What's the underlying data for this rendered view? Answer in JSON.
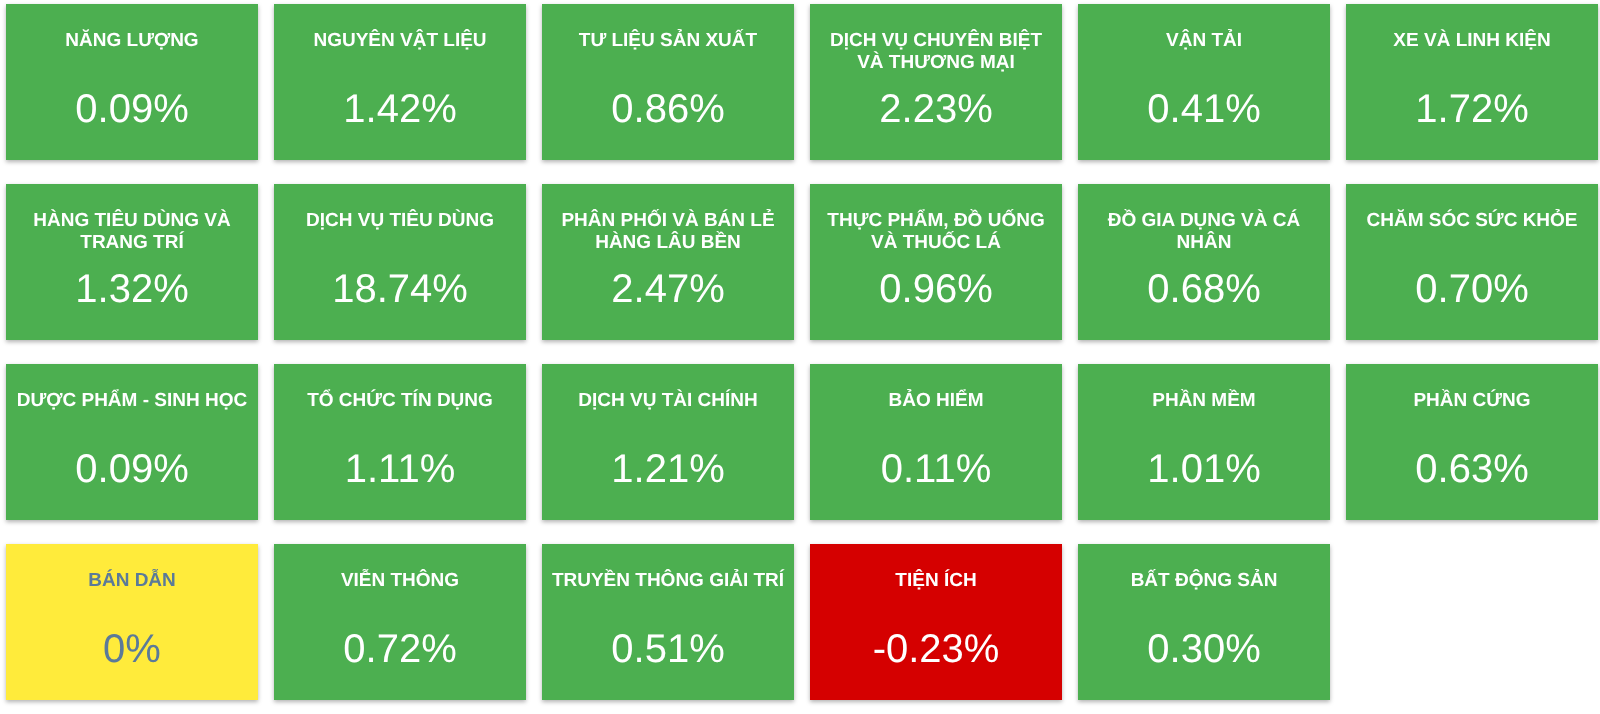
{
  "chart_data": {
    "type": "other",
    "categories": [
      "NĂNG LƯỢNG",
      "NGUYÊN VẬT LIỆU",
      "TƯ LIỆU SẢN XUẤT",
      "DỊCH VỤ CHUYÊN BIỆT VÀ THƯƠNG MẠI",
      "VẬN TẢI",
      "XE VÀ LINH KIỆN",
      "HÀNG TIÊU DÙNG VÀ TRANG TRÍ",
      "DỊCH VỤ TIÊU DÙNG",
      "PHÂN PHỐI VÀ BÁN LẺ HÀNG LÂU BỀN",
      "THỰC PHẨM, ĐỒ UỐNG VÀ THUỐC LÁ",
      "ĐỒ GIA DỤNG VÀ CÁ NHÂN",
      "CHĂM SÓC SỨC KHỎE",
      "DƯỢC PHẨM - SINH HỌC",
      "TỔ CHỨC TÍN DỤNG",
      "DỊCH VỤ TÀI CHÍNH",
      "BẢO HIỂM",
      "PHẦN MỀM",
      "PHẦN CỨNG",
      "BÁN DẪN",
      "VIỄN THÔNG",
      "TRUYỀN THÔNG GIẢI TRÍ",
      "TIỆN ÍCH",
      "BẤT ĐỘNG SẢN"
    ],
    "values": [
      0.09,
      1.42,
      0.86,
      2.23,
      0.41,
      1.72,
      1.32,
      18.74,
      2.47,
      0.96,
      0.68,
      0.7,
      0.09,
      1.11,
      1.21,
      0.11,
      1.01,
      0.63,
      0,
      0.72,
      0.51,
      -0.23,
      0.3
    ],
    "value_labels": [
      "0.09%",
      "1.42%",
      "0.86%",
      "2.23%",
      "0.41%",
      "1.72%",
      "1.32%",
      "18.74%",
      "2.47%",
      "0.96%",
      "0.68%",
      "0.70%",
      "0.09%",
      "1.11%",
      "1.21%",
      "0.11%",
      "1.01%",
      "0.63%",
      "0%",
      "0.72%",
      "0.51%",
      "-0.23%",
      "0.30%"
    ],
    "colors": [
      "#4caf50",
      "#4caf50",
      "#4caf50",
      "#4caf50",
      "#4caf50",
      "#4caf50",
      "#4caf50",
      "#4caf50",
      "#4caf50",
      "#4caf50",
      "#4caf50",
      "#4caf50",
      "#4caf50",
      "#4caf50",
      "#4caf50",
      "#4caf50",
      "#4caf50",
      "#4caf50",
      "#ffeb3b",
      "#4caf50",
      "#4caf50",
      "#d50000",
      "#4caf50"
    ]
  }
}
